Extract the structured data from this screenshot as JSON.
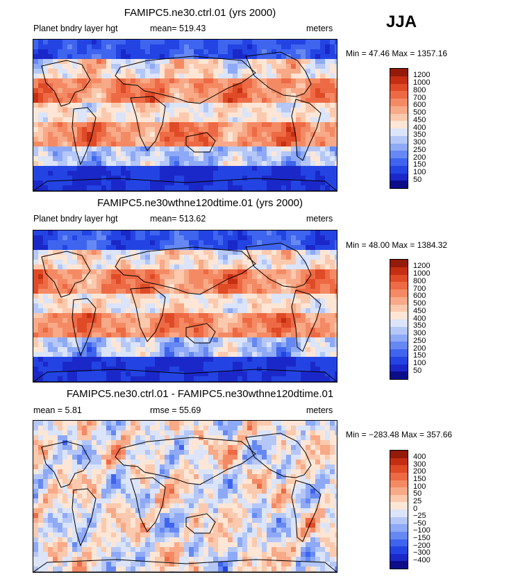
{
  "season": "JJA",
  "colors": {
    "abs": [
      "#0d0d8a",
      "#1b28c9",
      "#2344e3",
      "#3f64ee",
      "#6688f2",
      "#8ea9f5",
      "#b4c7f7",
      "#dbe4f8",
      "#fde6d6",
      "#fbc9ad",
      "#f8a987",
      "#f48a64",
      "#ed6a44",
      "#df4a27",
      "#c42e12",
      "#941a0a"
    ],
    "diff": [
      "#0d0d8a",
      "#1b28c9",
      "#2344e3",
      "#3f64ee",
      "#6688f2",
      "#8ea9f5",
      "#b4c7f7",
      "#dbe4f8",
      "#fde6d6",
      "#fbc9ad",
      "#f8a987",
      "#f48a64",
      "#ed6a44",
      "#df4a27",
      "#c42e12",
      "#941a0a"
    ],
    "land_outline": "#000000"
  },
  "panels": [
    {
      "title": "FAMIPC5.ne30.ctrl.01 (yrs 2000)",
      "left_label": "Planet bndry layer hgt",
      "center_label": "mean= 519.43",
      "right_label": "meters",
      "minmax": "Min =  47.46  Max = 1357.16",
      "levels": [
        "1200",
        "1000",
        "800",
        "700",
        "600",
        "500",
        "450",
        "400",
        "350",
        "300",
        "250",
        "200",
        "150",
        "100",
        "50"
      ]
    },
    {
      "title": "FAMIPC5.ne30wthne120dtime.01 (yrs 2000)",
      "left_label": "Planet bndry layer hgt",
      "center_label": "mean= 513.62",
      "right_label": "meters",
      "minmax": "Min =  48.00  Max = 1384.32",
      "levels": [
        "1200",
        "1000",
        "800",
        "700",
        "600",
        "500",
        "450",
        "400",
        "350",
        "300",
        "250",
        "200",
        "150",
        "100",
        "50"
      ]
    },
    {
      "title": "FAMIPC5.ne30.ctrl.01 - FAMIPC5.ne30wthne120dtime.01",
      "left_label": "mean =     5.81",
      "center_label": "rmse =   55.69",
      "right_label": "meters",
      "minmax": "Min = −283.48  Max = 357.66",
      "levels": [
        "400",
        "300",
        "200",
        "150",
        "100",
        "50",
        "25",
        "0",
        "−25",
        "−50",
        "−100",
        "−150",
        "−200",
        "−300",
        "−400"
      ]
    }
  ],
  "chart_data": [
    {
      "type": "heatmap",
      "title": "FAMIPC5.ne30.ctrl.01 (yrs 2000)",
      "variable": "Planet bndry layer hgt",
      "units": "meters",
      "mean": 519.43,
      "min": 47.46,
      "max": 1357.16,
      "contour_levels": [
        50,
        100,
        150,
        200,
        250,
        300,
        350,
        400,
        450,
        500,
        600,
        700,
        800,
        1000,
        1200
      ]
    },
    {
      "type": "heatmap",
      "title": "FAMIPC5.ne30wthne120dtime.01 (yrs 2000)",
      "variable": "Planet bndry layer hgt",
      "units": "meters",
      "mean": 513.62,
      "min": 48.0,
      "max": 1384.32,
      "contour_levels": [
        50,
        100,
        150,
        200,
        250,
        300,
        350,
        400,
        450,
        500,
        600,
        700,
        800,
        1000,
        1200
      ]
    },
    {
      "type": "heatmap",
      "title": "FAMIPC5.ne30.ctrl.01 - FAMIPC5.ne30wthne120dtime.01",
      "units": "meters",
      "mean": 5.81,
      "rmse": 55.69,
      "min": -283.48,
      "max": 357.66,
      "contour_levels": [
        -400,
        -300,
        -200,
        -150,
        -100,
        -50,
        -25,
        0,
        25,
        50,
        100,
        150,
        200,
        300,
        400
      ]
    }
  ]
}
